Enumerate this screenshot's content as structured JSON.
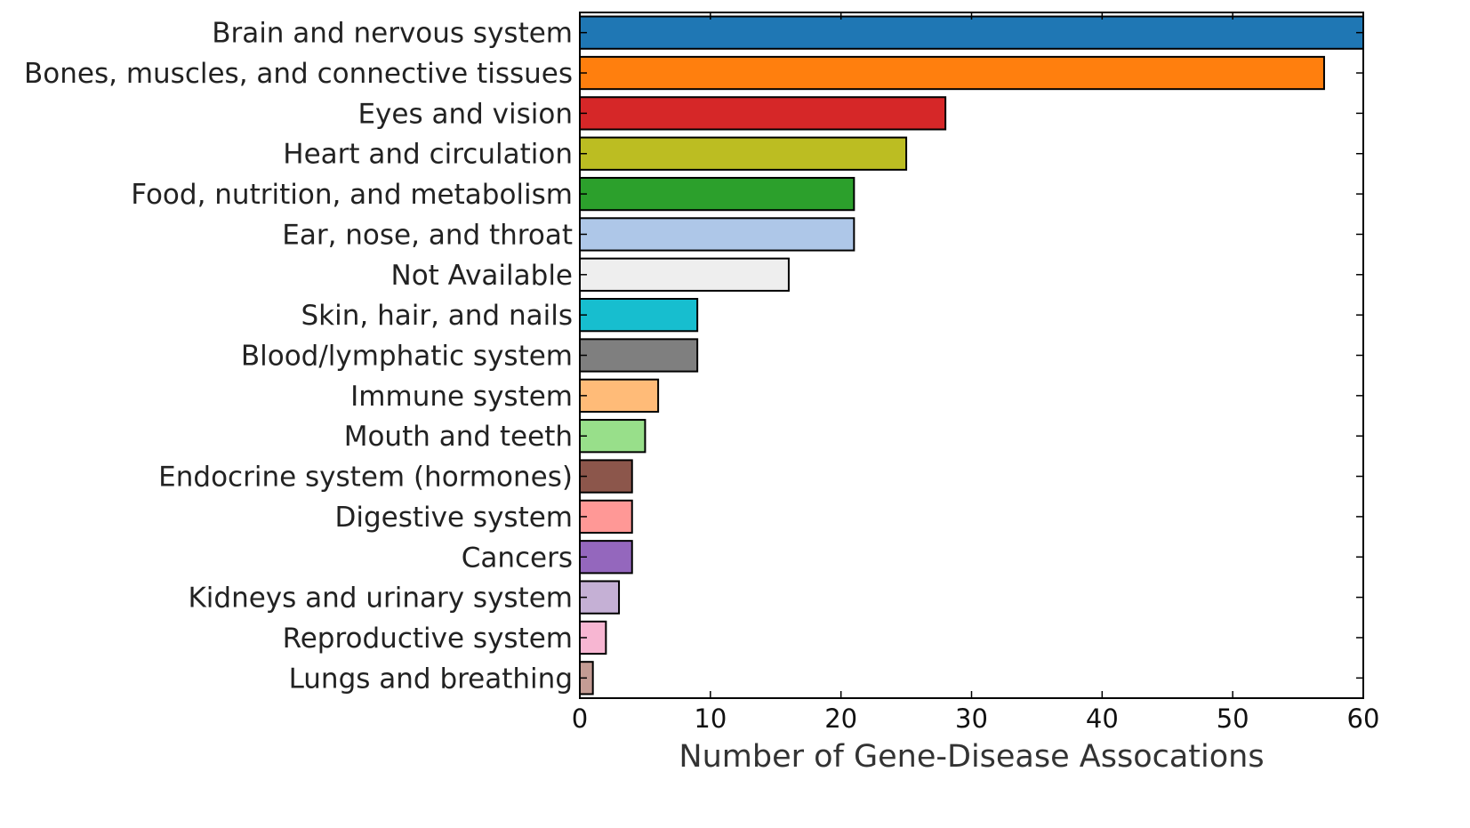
{
  "chart_data": {
    "type": "bar",
    "orientation": "horizontal",
    "categories": [
      "Brain and nervous system",
      "Bones, muscles, and connective tissues",
      "Eyes and vision",
      "Heart and circulation",
      "Food, nutrition, and metabolism",
      "Ear, nose, and throat",
      "Not Available",
      "Skin, hair, and nails",
      "Blood/lymphatic system",
      "Immune system",
      "Mouth and teeth",
      "Endocrine system (hormones)",
      "Digestive system",
      "Cancers",
      "Kidneys and urinary system",
      "Reproductive system",
      "Lungs and breathing"
    ],
    "values": [
      60,
      57,
      28,
      25,
      21,
      21,
      16,
      9,
      9,
      6,
      5,
      4,
      4,
      4,
      3,
      2,
      1
    ],
    "colors": [
      "#1f77b4",
      "#ff7f0e",
      "#d62728",
      "#bcbd22",
      "#2ca02c",
      "#aec7e8",
      "#eeeeee",
      "#17becf",
      "#7f7f7f",
      "#ffbb78",
      "#98df8a",
      "#8c564b",
      "#ff9896",
      "#9467bd",
      "#c5b0d5",
      "#f7b6d2",
      "#c49c94"
    ],
    "xlabel": "Number of Gene-Disease Assocations",
    "ylabel": "",
    "title": "",
    "xlim": [
      0,
      60
    ],
    "xticks": [
      0,
      10,
      20,
      30,
      40,
      50,
      60
    ],
    "grid": false,
    "legend": "none"
  }
}
